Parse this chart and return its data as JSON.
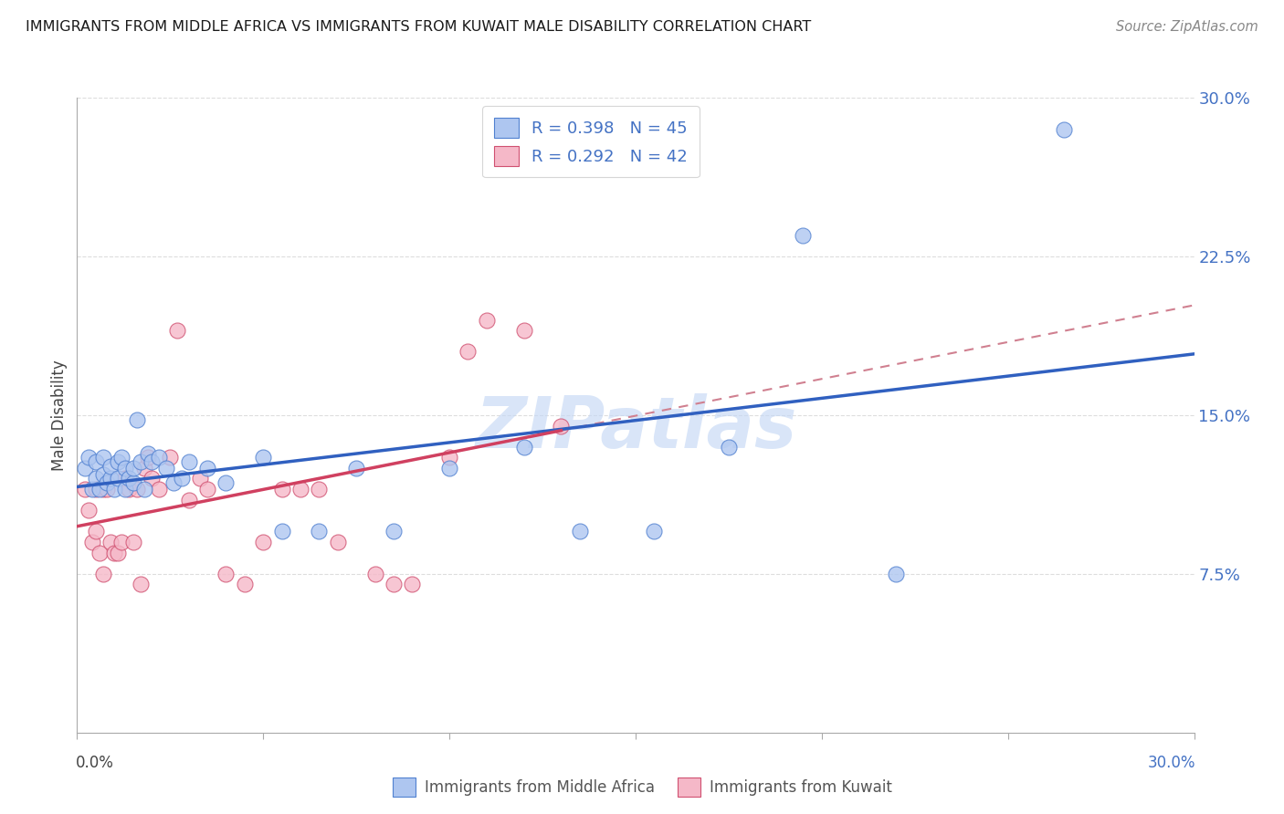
{
  "title": "IMMIGRANTS FROM MIDDLE AFRICA VS IMMIGRANTS FROM KUWAIT MALE DISABILITY CORRELATION CHART",
  "source": "Source: ZipAtlas.com",
  "ylabel": "Male Disability",
  "watermark": "ZIPatlas",
  "xlim": [
    0.0,
    0.3
  ],
  "ylim": [
    0.0,
    0.3
  ],
  "legend_color": "#4472C4",
  "series1_color": "#aec6f0",
  "series2_color": "#f5b8c8",
  "series1_edge": "#5080d0",
  "series2_edge": "#d05070",
  "series1_line_color": "#3060C0",
  "series2_line_color": "#D04060",
  "series2_dash_color": "#D08090",
  "background_color": "#ffffff",
  "grid_color": "#dddddd",
  "blue_x": [
    0.002,
    0.003,
    0.004,
    0.005,
    0.005,
    0.006,
    0.007,
    0.007,
    0.008,
    0.009,
    0.009,
    0.01,
    0.011,
    0.011,
    0.012,
    0.013,
    0.013,
    0.014,
    0.015,
    0.015,
    0.016,
    0.017,
    0.018,
    0.019,
    0.02,
    0.022,
    0.024,
    0.026,
    0.028,
    0.03,
    0.035,
    0.04,
    0.05,
    0.055,
    0.065,
    0.075,
    0.085,
    0.1,
    0.12,
    0.135,
    0.155,
    0.175,
    0.195,
    0.22,
    0.265
  ],
  "blue_y": [
    0.125,
    0.13,
    0.115,
    0.12,
    0.128,
    0.115,
    0.122,
    0.13,
    0.118,
    0.12,
    0.126,
    0.115,
    0.128,
    0.12,
    0.13,
    0.115,
    0.125,
    0.12,
    0.118,
    0.125,
    0.148,
    0.128,
    0.115,
    0.132,
    0.128,
    0.13,
    0.125,
    0.118,
    0.12,
    0.128,
    0.125,
    0.118,
    0.13,
    0.095,
    0.095,
    0.125,
    0.095,
    0.125,
    0.135,
    0.095,
    0.095,
    0.135,
    0.235,
    0.075,
    0.285
  ],
  "pink_x": [
    0.002,
    0.003,
    0.004,
    0.005,
    0.005,
    0.006,
    0.007,
    0.007,
    0.008,
    0.009,
    0.01,
    0.011,
    0.012,
    0.013,
    0.014,
    0.015,
    0.016,
    0.017,
    0.018,
    0.019,
    0.02,
    0.022,
    0.025,
    0.027,
    0.03,
    0.033,
    0.035,
    0.04,
    0.045,
    0.05,
    0.055,
    0.06,
    0.065,
    0.07,
    0.08,
    0.085,
    0.09,
    0.1,
    0.105,
    0.11,
    0.12,
    0.13
  ],
  "pink_y": [
    0.115,
    0.105,
    0.09,
    0.115,
    0.095,
    0.085,
    0.075,
    0.115,
    0.115,
    0.09,
    0.085,
    0.085,
    0.09,
    0.12,
    0.115,
    0.09,
    0.115,
    0.07,
    0.125,
    0.13,
    0.12,
    0.115,
    0.13,
    0.19,
    0.11,
    0.12,
    0.115,
    0.075,
    0.07,
    0.09,
    0.115,
    0.115,
    0.115,
    0.09,
    0.075,
    0.07,
    0.07,
    0.13,
    0.18,
    0.195,
    0.19,
    0.145
  ]
}
